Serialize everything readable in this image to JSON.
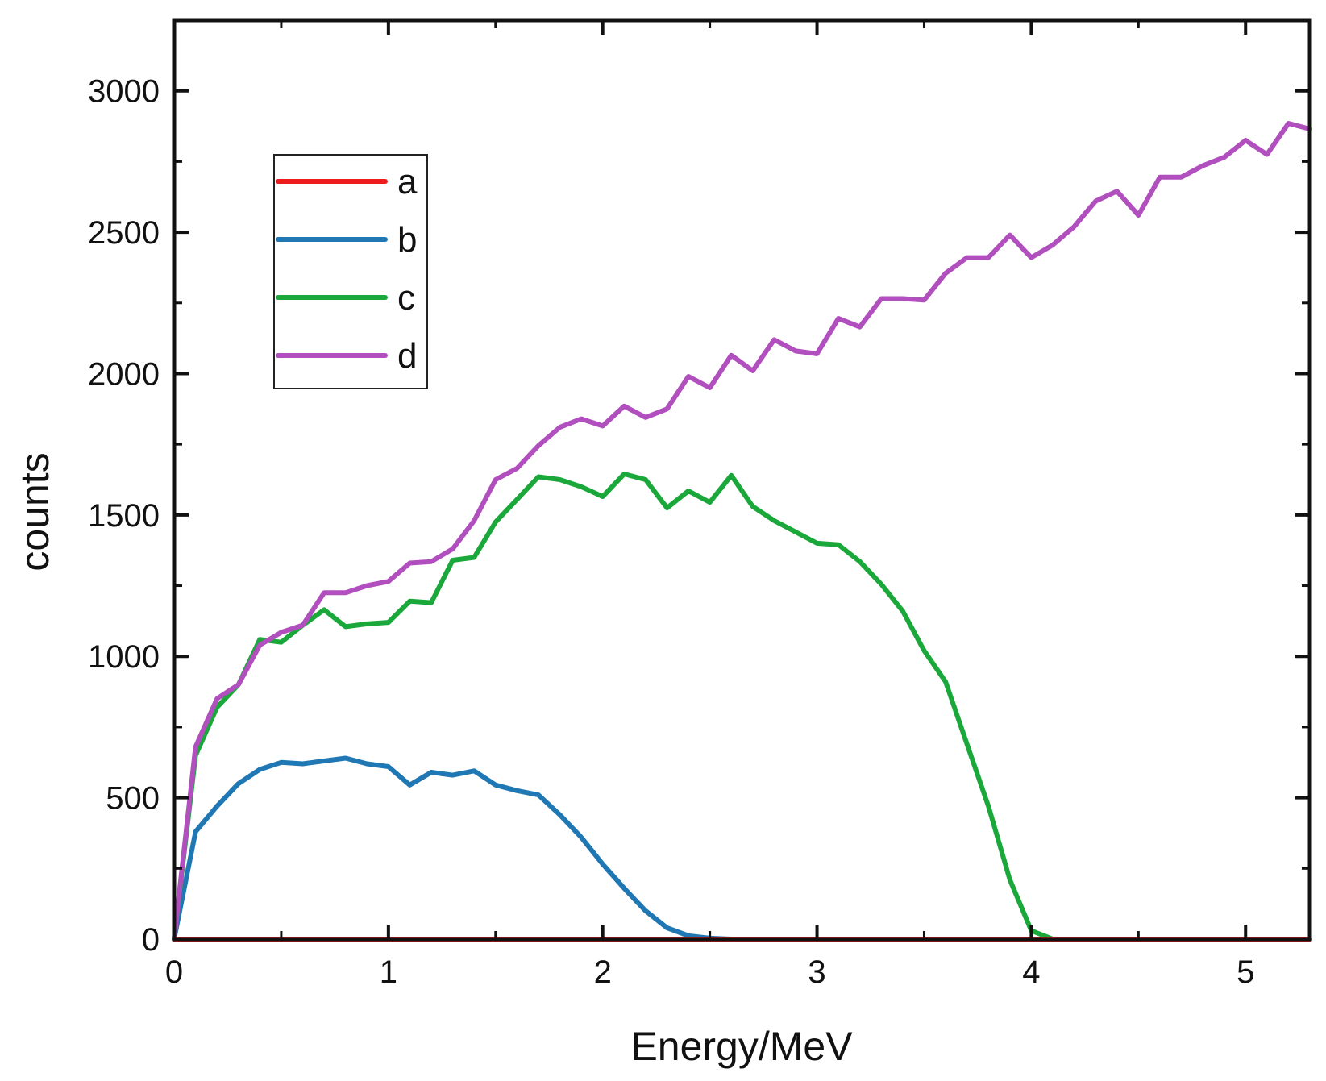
{
  "chart_data": {
    "type": "line",
    "title": "",
    "xlabel": "Energy/MeV",
    "ylabel": "counts",
    "xlim": [
      0,
      5.3
    ],
    "ylim": [
      0,
      3250
    ],
    "xticks": [
      0,
      1,
      2,
      3,
      4,
      5
    ],
    "yticks": [
      0,
      500,
      1000,
      1500,
      2000,
      2500,
      3000
    ],
    "xtick_labels": [
      "0",
      "1",
      "2",
      "3",
      "4",
      "5"
    ],
    "ytick_labels": [
      "0",
      "500",
      "1000",
      "1500",
      "2000",
      "2500",
      "3000"
    ],
    "grid": false,
    "legend_position": "upper-left",
    "series": [
      {
        "name": "a",
        "color": "#ee1c1c",
        "points": [
          [
            0,
            0
          ],
          [
            5.3,
            0
          ]
        ]
      },
      {
        "name": "b",
        "color": "#1f77b4",
        "points": [
          [
            0,
            0
          ],
          [
            0.1,
            380
          ],
          [
            0.2,
            470
          ],
          [
            0.3,
            550
          ],
          [
            0.4,
            600
          ],
          [
            0.5,
            625
          ],
          [
            0.6,
            620
          ],
          [
            0.7,
            630
          ],
          [
            0.8,
            640
          ],
          [
            0.9,
            620
          ],
          [
            1.0,
            610
          ],
          [
            1.1,
            545
          ],
          [
            1.2,
            590
          ],
          [
            1.3,
            580
          ],
          [
            1.4,
            595
          ],
          [
            1.5,
            545
          ],
          [
            1.6,
            525
          ],
          [
            1.7,
            510
          ],
          [
            1.8,
            440
          ],
          [
            1.9,
            360
          ],
          [
            2.0,
            265
          ],
          [
            2.1,
            180
          ],
          [
            2.2,
            100
          ],
          [
            2.3,
            40
          ],
          [
            2.4,
            12
          ],
          [
            2.5,
            3
          ],
          [
            2.6,
            0
          ],
          [
            2.9,
            0
          ]
        ]
      },
      {
        "name": "c",
        "color": "#1aa83b",
        "points": [
          [
            0,
            0
          ],
          [
            0.1,
            650
          ],
          [
            0.2,
            820
          ],
          [
            0.3,
            900
          ],
          [
            0.4,
            1060
          ],
          [
            0.5,
            1050
          ],
          [
            0.6,
            1110
          ],
          [
            0.7,
            1165
          ],
          [
            0.8,
            1105
          ],
          [
            0.9,
            1115
          ],
          [
            1.0,
            1120
          ],
          [
            1.1,
            1195
          ],
          [
            1.2,
            1190
          ],
          [
            1.3,
            1340
          ],
          [
            1.4,
            1350
          ],
          [
            1.5,
            1475
          ],
          [
            1.6,
            1555
          ],
          [
            1.7,
            1635
          ],
          [
            1.8,
            1625
          ],
          [
            1.9,
            1600
          ],
          [
            2.0,
            1565
          ],
          [
            2.1,
            1645
          ],
          [
            2.2,
            1625
          ],
          [
            2.3,
            1525
          ],
          [
            2.4,
            1585
          ],
          [
            2.5,
            1545
          ],
          [
            2.6,
            1640
          ],
          [
            2.7,
            1530
          ],
          [
            2.8,
            1480
          ],
          [
            2.9,
            1440
          ],
          [
            3.0,
            1400
          ],
          [
            3.1,
            1395
          ],
          [
            3.2,
            1335
          ],
          [
            3.3,
            1255
          ],
          [
            3.4,
            1160
          ],
          [
            3.5,
            1020
          ],
          [
            3.6,
            910
          ],
          [
            3.7,
            690
          ],
          [
            3.8,
            470
          ],
          [
            3.9,
            210
          ],
          [
            4.0,
            30
          ],
          [
            4.1,
            0
          ],
          [
            4.2,
            0
          ]
        ]
      },
      {
        "name": "d",
        "color": "#b04fbd",
        "points": [
          [
            0,
            0
          ],
          [
            0.1,
            680
          ],
          [
            0.2,
            850
          ],
          [
            0.3,
            900
          ],
          [
            0.4,
            1040
          ],
          [
            0.5,
            1085
          ],
          [
            0.6,
            1110
          ],
          [
            0.7,
            1225
          ],
          [
            0.8,
            1225
          ],
          [
            0.9,
            1250
          ],
          [
            1.0,
            1265
          ],
          [
            1.1,
            1330
          ],
          [
            1.2,
            1335
          ],
          [
            1.3,
            1380
          ],
          [
            1.4,
            1480
          ],
          [
            1.5,
            1625
          ],
          [
            1.6,
            1665
          ],
          [
            1.7,
            1745
          ],
          [
            1.8,
            1810
          ],
          [
            1.9,
            1840
          ],
          [
            2.0,
            1815
          ],
          [
            2.1,
            1885
          ],
          [
            2.2,
            1845
          ],
          [
            2.3,
            1875
          ],
          [
            2.4,
            1990
          ],
          [
            2.5,
            1950
          ],
          [
            2.6,
            2065
          ],
          [
            2.7,
            2010
          ],
          [
            2.8,
            2120
          ],
          [
            2.9,
            2080
          ],
          [
            3.0,
            2070
          ],
          [
            3.1,
            2195
          ],
          [
            3.2,
            2165
          ],
          [
            3.3,
            2265
          ],
          [
            3.4,
            2265
          ],
          [
            3.5,
            2260
          ],
          [
            3.6,
            2355
          ],
          [
            3.7,
            2410
          ],
          [
            3.8,
            2410
          ],
          [
            3.9,
            2490
          ],
          [
            4.0,
            2410
          ],
          [
            4.1,
            2455
          ],
          [
            4.2,
            2520
          ],
          [
            4.3,
            2610
          ],
          [
            4.4,
            2645
          ],
          [
            4.5,
            2560
          ],
          [
            4.6,
            2695
          ],
          [
            4.7,
            2695
          ],
          [
            4.8,
            2735
          ],
          [
            4.9,
            2765
          ],
          [
            5.0,
            2825
          ],
          [
            5.1,
            2775
          ],
          [
            5.2,
            2885
          ],
          [
            5.3,
            2865
          ]
        ]
      }
    ]
  }
}
